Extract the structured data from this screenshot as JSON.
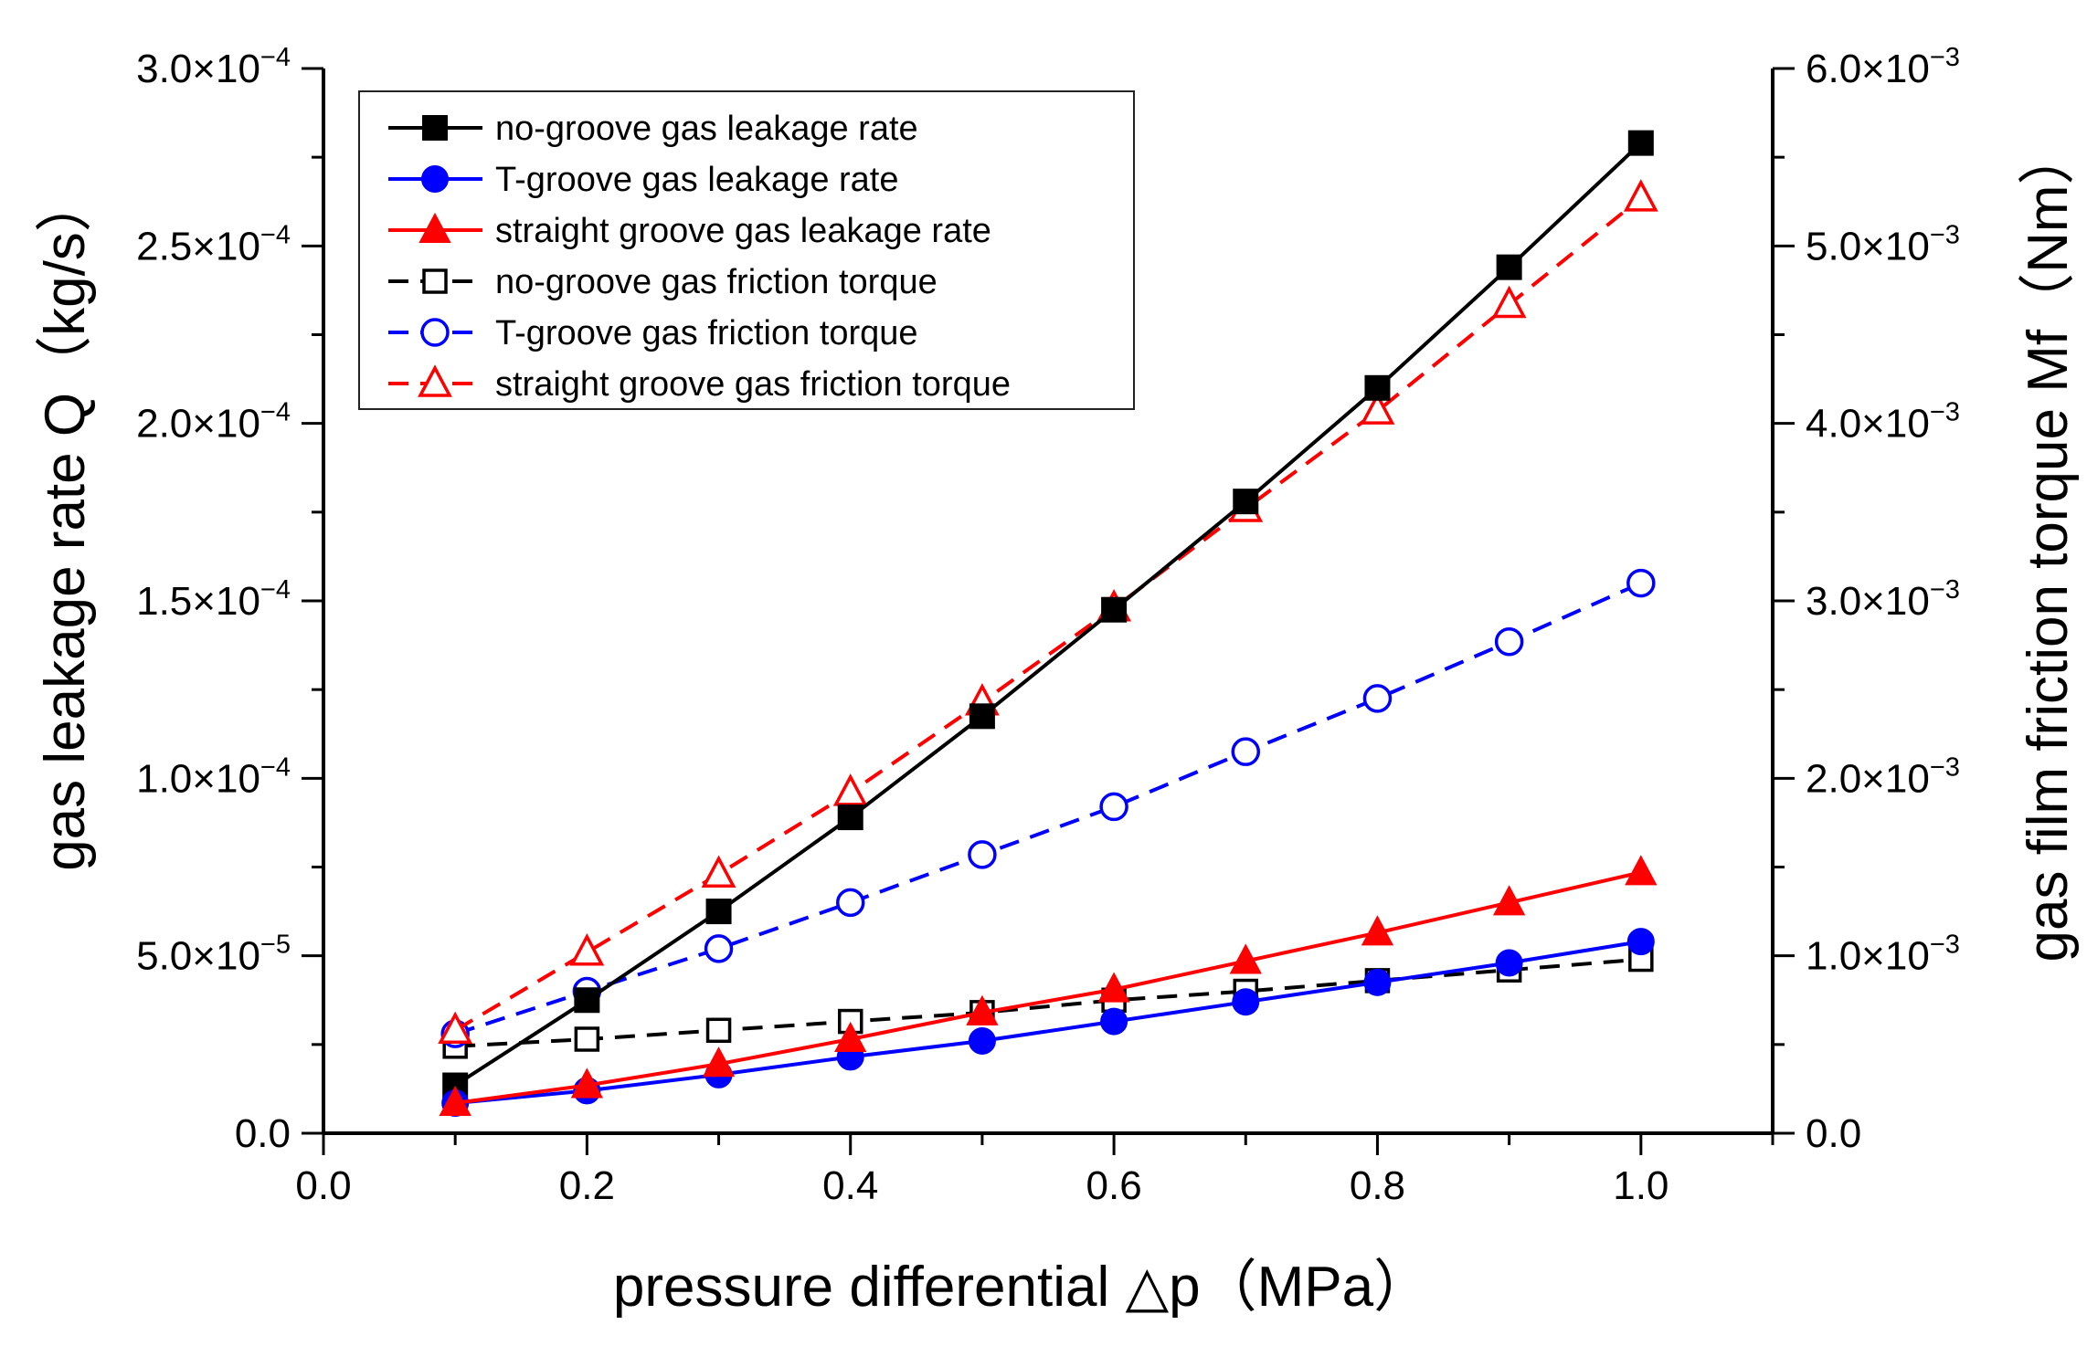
{
  "chart_data": {
    "type": "line",
    "title": "",
    "xlabel": "pressure differential △p（MPa）",
    "ylabel": "gas leakage rate Q（kg/s）",
    "y2label": "gas film friction torque Mf（Nm）",
    "xlim": [
      0.0,
      1.1
    ],
    "ylim": [
      0.0,
      0.0003
    ],
    "y2lim": [
      0.0,
      0.006
    ],
    "x_ticks": [
      {
        "value": 0.0,
        "label": "0.0"
      },
      {
        "value": 0.2,
        "label": "0.2"
      },
      {
        "value": 0.4,
        "label": "0.4"
      },
      {
        "value": 0.6,
        "label": "0.6"
      },
      {
        "value": 0.8,
        "label": "0.8"
      },
      {
        "value": 1.0,
        "label": "1.0"
      }
    ],
    "y_ticks": [
      {
        "value": 0.0,
        "mantissa": "0.0",
        "exp": ""
      },
      {
        "value": 5e-05,
        "mantissa": "5.0×10",
        "exp": "−5"
      },
      {
        "value": 0.0001,
        "mantissa": "1.0×10",
        "exp": "−4"
      },
      {
        "value": 0.00015,
        "mantissa": "1.5×10",
        "exp": "−4"
      },
      {
        "value": 0.0002,
        "mantissa": "2.0×10",
        "exp": "−4"
      },
      {
        "value": 0.00025,
        "mantissa": "2.5×10",
        "exp": "−4"
      },
      {
        "value": 0.0003,
        "mantissa": "3.0×10",
        "exp": "−4"
      }
    ],
    "y2_ticks": [
      {
        "value": 0.0,
        "mantissa": "0.0",
        "exp": ""
      },
      {
        "value": 0.001,
        "mantissa": "1.0×10",
        "exp": "−3"
      },
      {
        "value": 0.002,
        "mantissa": "2.0×10",
        "exp": "−3"
      },
      {
        "value": 0.003,
        "mantissa": "3.0×10",
        "exp": "−3"
      },
      {
        "value": 0.004,
        "mantissa": "4.0×10",
        "exp": "−3"
      },
      {
        "value": 0.005,
        "mantissa": "5.0×10",
        "exp": "−3"
      },
      {
        "value": 0.006,
        "mantissa": "6.0×10",
        "exp": "−3"
      }
    ],
    "legend_position": "top-left",
    "x": [
      0.1,
      0.2,
      0.3,
      0.4,
      0.5,
      0.6,
      0.7,
      0.8,
      0.9,
      1.0
    ],
    "series": [
      {
        "name": "no-groove gas leakage rate",
        "axis": "left",
        "color": "#000000",
        "marker": "square",
        "filled": true,
        "dashed": false,
        "values": [
          1.35e-05,
          3.75e-05,
          6.25e-05,
          8.9e-05,
          0.0001175,
          0.0001475,
          0.000178,
          0.00021,
          0.000244,
          0.000279
        ]
      },
      {
        "name": "T-groove gas leakage rate",
        "axis": "left",
        "color": "#0000ff",
        "marker": "circle",
        "filled": true,
        "dashed": false,
        "values": [
          8.5e-06,
          1.2e-05,
          1.65e-05,
          2.15e-05,
          2.6e-05,
          3.15e-05,
          3.7e-05,
          4.25e-05,
          4.8e-05,
          5.4e-05
        ]
      },
      {
        "name": "straight groove gas leakage rate",
        "axis": "left",
        "color": "#ff0000",
        "marker": "triangle",
        "filled": true,
        "dashed": false,
        "values": [
          8.5e-06,
          1.35e-05,
          1.95e-05,
          2.65e-05,
          3.4e-05,
          4.05e-05,
          4.85e-05,
          5.65e-05,
          6.5e-05,
          7.35e-05
        ]
      },
      {
        "name": "no-groove gas friction torque",
        "axis": "right",
        "color": "#000000",
        "marker": "square",
        "filled": false,
        "dashed": true,
        "values": [
          0.00049,
          0.00053,
          0.00058,
          0.00063,
          0.00068,
          0.00075,
          0.0008,
          0.00086,
          0.00092,
          0.00098
        ]
      },
      {
        "name": "T-groove gas friction torque",
        "axis": "right",
        "color": "#0000ff",
        "marker": "circle",
        "filled": false,
        "dashed": true,
        "values": [
          0.00056,
          0.0008,
          0.00104,
          0.0013,
          0.00157,
          0.00184,
          0.00215,
          0.00245,
          0.00277,
          0.0031
        ]
      },
      {
        "name": "straight groove gas friction torque",
        "axis": "right",
        "color": "#ff0000",
        "marker": "triangle",
        "filled": false,
        "dashed": true,
        "values": [
          0.00058,
          0.00102,
          0.00146,
          0.00192,
          0.00243,
          0.00296,
          0.00352,
          0.00407,
          0.00467,
          0.00527
        ]
      }
    ]
  }
}
